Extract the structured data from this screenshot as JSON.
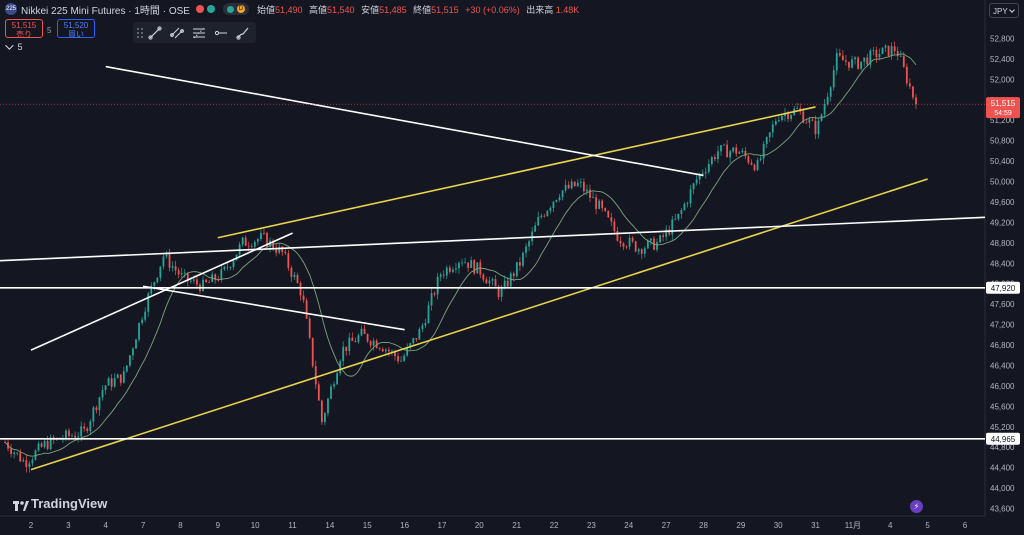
{
  "header": {
    "symbol_logo": "225",
    "title": "Nikkei 225 Mini Futures · 1時間 · OSE",
    "dot_colors": [
      "#ef5350",
      "#26a69a"
    ],
    "status_letter": "D",
    "ohlc": [
      {
        "key": "始値",
        "value": "51,490"
      },
      {
        "key": "高値",
        "value": "51,540"
      },
      {
        "key": "安値",
        "value": "51,485"
      },
      {
        "key": "終値",
        "value": "51,515"
      }
    ],
    "change": "+30 (+0.06%)",
    "volume_label": "出来高",
    "volume_value": "1.48K"
  },
  "trade": {
    "sell_price": "51,515",
    "sell_label": "売り",
    "spread": "5",
    "buy_price": "51,520",
    "buy_label": "買い"
  },
  "indicator_toggle": "5",
  "currency": "JPY",
  "branding": "TradingView",
  "colors": {
    "bg": "#141722",
    "up": "#26a69a",
    "down": "#ef5350",
    "channel": "#e8d44d",
    "trendline": "#ffffff",
    "ma": "#7aa57a",
    "price_tag": "#ef5350"
  },
  "chart_data": {
    "type": "candlestick",
    "y_axis": {
      "range": [
        43400,
        53200
      ],
      "ticks": [
        43600,
        44000,
        44400,
        44800,
        45200,
        45600,
        46000,
        46400,
        46800,
        47200,
        47600,
        48000,
        48400,
        48800,
        49200,
        49600,
        50000,
        50400,
        50800,
        51200,
        51600,
        52000,
        52400,
        52800
      ],
      "tick_labels": [
        "43,600",
        "44,000",
        "44,400",
        "44,800",
        "45,200",
        "45,600",
        "46,000",
        "46,400",
        "46,800",
        "47,200",
        "47,600",
        "48,000",
        "48,400",
        "48,800",
        "49,200",
        "49,600",
        "50,000",
        "50,400",
        "50,800",
        "51,200",
        "51,600",
        "52,000",
        "52,400",
        "52,800"
      ],
      "side": "right"
    },
    "x_axis": {
      "tick_labels": [
        "2",
        "3",
        "4",
        "7",
        "8",
        "9",
        "10",
        "11",
        "14",
        "15",
        "16",
        "17",
        "20",
        "21",
        "22",
        "23",
        "24",
        "27",
        "28",
        "29",
        "30",
        "31",
        "11月",
        "4",
        "5",
        "6"
      ]
    },
    "last_price": {
      "value": 51515,
      "label": "51,515",
      "countdown": "54:59"
    },
    "horizontal_levels": [
      {
        "value": 47920,
        "label": "47,920"
      },
      {
        "value": 44965,
        "label": "44,965"
      }
    ],
    "price_path": [
      44900,
      44500,
      44850,
      45000,
      45100,
      46000,
      46200,
      47500,
      48550,
      48100,
      47950,
      48200,
      48800,
      48900,
      48600,
      47800,
      45300,
      46700,
      47000,
      46800,
      46500,
      47100,
      48200,
      48500,
      48250,
      47800,
      48400,
      49300,
      49800,
      49950,
      49500,
      48900,
      48700,
      48800,
      49300,
      50100,
      50600,
      50600,
      50300,
      51300,
      51400,
      51000,
      52400,
      52300,
      52500,
      52600,
      51515
    ],
    "trendlines": [
      {
        "color": "yellow",
        "from": {
          "day": "9",
          "price": 48900
        },
        "to": {
          "day": "31",
          "price": 51460
        }
      },
      {
        "color": "yellow",
        "from": {
          "day": "2",
          "price": 44360
        },
        "to": {
          "day": "5",
          "price": 50050
        }
      },
      {
        "color": "white",
        "from": {
          "day": "2",
          "price": 48450
        },
        "to": {
          "day": "6",
          "price": 49300
        }
      },
      {
        "color": "white",
        "from": {
          "day": "2",
          "price": 46700
        },
        "to": {
          "day": "11",
          "price": 48990
        }
      },
      {
        "color": "white",
        "from": {
          "day": "7",
          "price": 47950
        },
        "to": {
          "day": "16",
          "price": 47100
        }
      },
      {
        "color": "white",
        "from": {
          "day": "28",
          "price": 50120
        },
        "to": {
          "day": "4",
          "price": 52250
        }
      }
    ],
    "grid": false,
    "moving_average": true
  }
}
